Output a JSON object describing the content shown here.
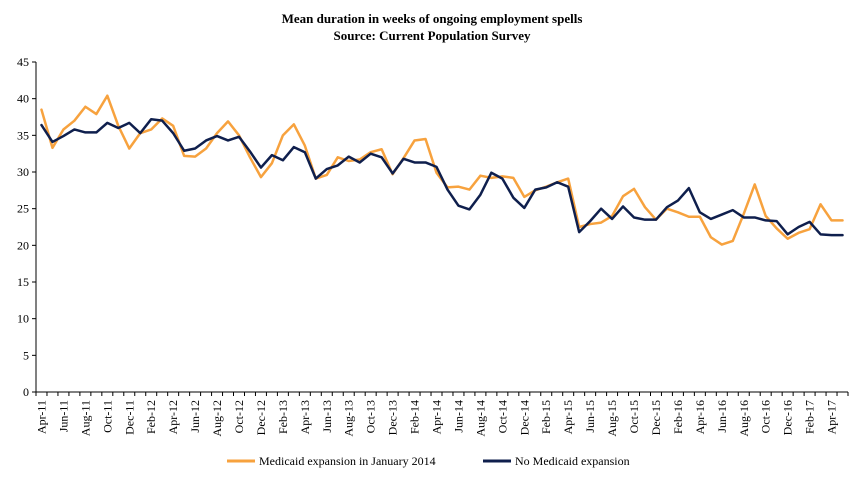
{
  "chart_data": {
    "type": "line",
    "title": "Mean duration in weeks of ongoing employment spells",
    "subtitle": "Source: Current Population Survey",
    "xlabel": "",
    "ylabel": "",
    "ylim": [
      0,
      45
    ],
    "yticks": [
      0,
      5,
      10,
      15,
      20,
      25,
      30,
      35,
      40,
      45
    ],
    "x": [
      "Apr-11",
      "May-11",
      "Jun-11",
      "Jul-11",
      "Aug-11",
      "Sep-11",
      "Oct-11",
      "Nov-11",
      "Dec-11",
      "Jan-12",
      "Feb-12",
      "Mar-12",
      "Apr-12",
      "May-12",
      "Jun-12",
      "Jul-12",
      "Aug-12",
      "Sep-12",
      "Oct-12",
      "Nov-12",
      "Dec-12",
      "Jan-13",
      "Feb-13",
      "Mar-13",
      "Apr-13",
      "May-13",
      "Jun-13",
      "Jul-13",
      "Aug-13",
      "Sep-13",
      "Oct-13",
      "Nov-13",
      "Dec-13",
      "Jan-14",
      "Feb-14",
      "Mar-14",
      "Apr-14",
      "May-14",
      "Jun-14",
      "Jul-14",
      "Aug-14",
      "Sep-14",
      "Oct-14",
      "Nov-14",
      "Dec-14",
      "Jan-15",
      "Feb-15",
      "Mar-15",
      "Apr-15",
      "May-15",
      "Jun-15",
      "Jul-15",
      "Aug-15",
      "Sep-15",
      "Oct-15",
      "Nov-15",
      "Dec-15",
      "Jan-16",
      "Feb-16",
      "Mar-16",
      "Apr-16",
      "May-16",
      "Jun-16",
      "Jul-16",
      "Aug-16",
      "Sep-16",
      "Oct-16",
      "Nov-16",
      "Dec-16",
      "Jan-17",
      "Feb-17",
      "Mar-17",
      "Apr-17",
      "May-17"
    ],
    "xtick_labels": [
      "Apr-11",
      "Jun-11",
      "Aug-11",
      "Oct-11",
      "Dec-11",
      "Feb-12",
      "Apr-12",
      "Jun-12",
      "Aug-12",
      "Oct-12",
      "Dec-12",
      "Feb-13",
      "Apr-13",
      "Jun-13",
      "Aug-13",
      "Oct-13",
      "Dec-13",
      "Feb-14",
      "Apr-14",
      "Jun-14",
      "Aug-14",
      "Oct-14",
      "Dec-14",
      "Feb-15",
      "Apr-15",
      "Jun-15",
      "Aug-15",
      "Oct-15",
      "Dec-15",
      "Feb-16",
      "Apr-16",
      "Jun-16",
      "Aug-16",
      "Oct-16",
      "Dec-16",
      "Feb-17",
      "Apr-17"
    ],
    "series": [
      {
        "name": "Medicaid expansion in January 2014",
        "color": "#f7a23e",
        "values": [
          38.5,
          33.3,
          35.8,
          37.0,
          38.9,
          37.9,
          40.4,
          36.3,
          33.2,
          35.3,
          35.8,
          37.3,
          36.3,
          32.2,
          32.1,
          33.2,
          35.3,
          36.9,
          35.0,
          32.0,
          29.3,
          31.2,
          35.0,
          36.5,
          33.6,
          29.1,
          29.6,
          32.0,
          31.5,
          31.7,
          32.7,
          33.1,
          29.7,
          31.9,
          34.3,
          34.5,
          29.9,
          27.9,
          28.0,
          27.6,
          29.5,
          29.2,
          29.4,
          29.2,
          26.6,
          27.5,
          28.0,
          28.6,
          29.1,
          22.5,
          22.9,
          23.1,
          24.0,
          26.7,
          27.7,
          25.2,
          23.5,
          25.0,
          24.5,
          23.9,
          23.9,
          21.1,
          20.1,
          20.6,
          24.3,
          28.3,
          24.0,
          22.3,
          20.9,
          21.7,
          22.2,
          25.6,
          23.4,
          23.4
        ]
      },
      {
        "name": "No Medicaid expansion",
        "color": "#0f1f4d",
        "values": [
          36.4,
          34.1,
          34.9,
          35.8,
          35.4,
          35.4,
          36.7,
          36.0,
          36.7,
          35.3,
          37.2,
          37.0,
          35.3,
          32.9,
          33.2,
          34.3,
          34.9,
          34.3,
          34.8,
          32.8,
          30.6,
          32.3,
          31.6,
          33.4,
          32.7,
          29.1,
          30.4,
          30.9,
          32.1,
          31.3,
          32.5,
          32.0,
          29.8,
          31.8,
          31.3,
          31.3,
          30.7,
          27.6,
          25.4,
          24.9,
          26.9,
          29.9,
          29.1,
          26.5,
          25.1,
          27.6,
          27.9,
          28.6,
          28.0,
          21.8,
          23.3,
          25.0,
          23.6,
          25.3,
          23.8,
          23.5,
          23.5,
          25.2,
          26.1,
          27.8,
          24.5,
          23.6,
          24.2,
          24.8,
          23.8,
          23.8,
          23.4,
          23.3,
          21.5,
          22.5,
          23.2,
          21.5,
          21.4,
          21.4
        ]
      }
    ],
    "grid": false,
    "legend_position": "bottom"
  }
}
